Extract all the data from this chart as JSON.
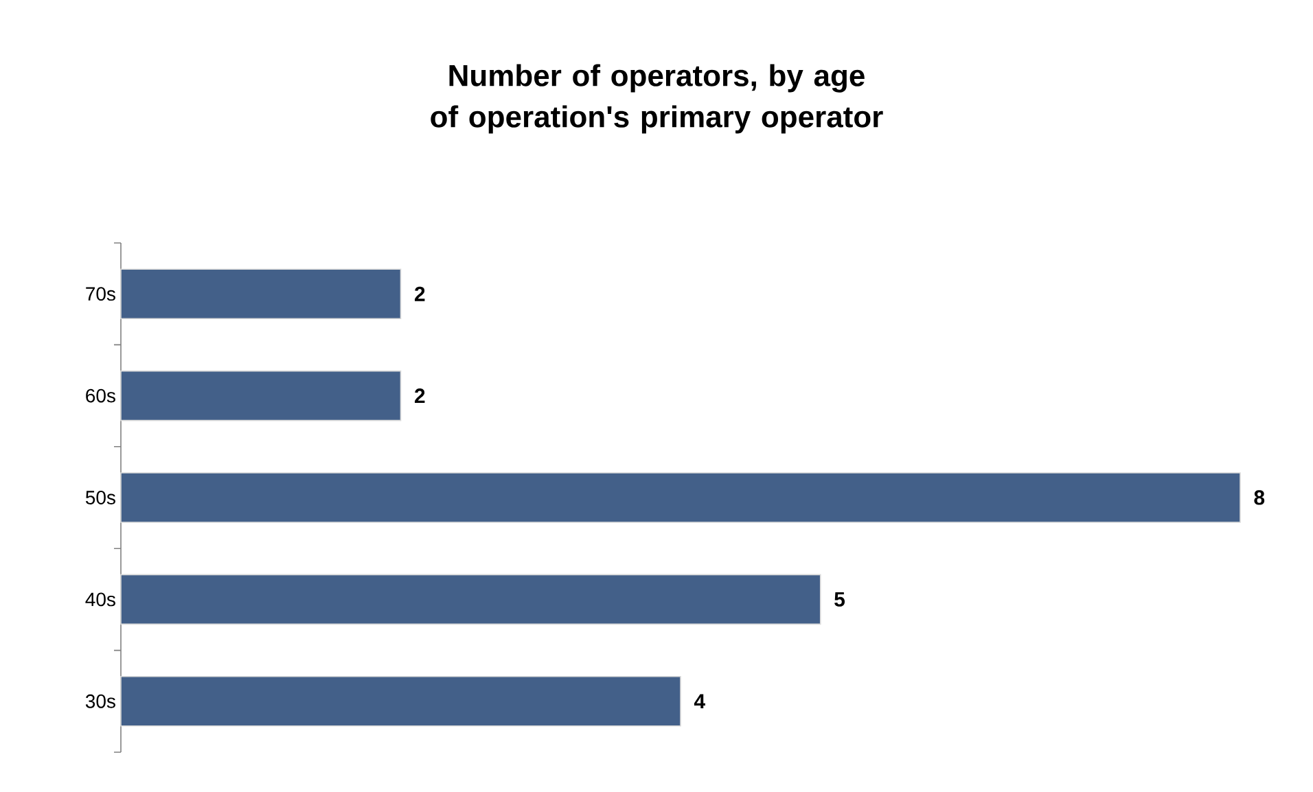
{
  "chart_data": {
    "type": "bar",
    "orientation": "horizontal",
    "title": "Number of operators, by age of operation's primary operator",
    "categories": [
      "70s",
      "60s",
      "50s",
      "40s",
      "30s"
    ],
    "values": [
      2,
      2,
      8,
      5,
      4
    ],
    "color": "#436089",
    "data_labels": true
  }
}
